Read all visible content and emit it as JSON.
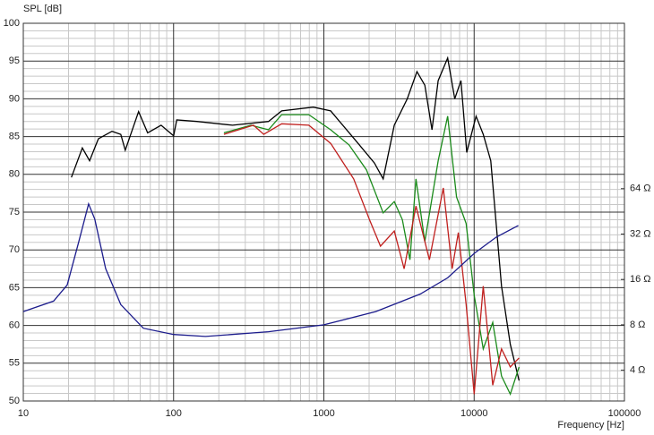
{
  "chart_data": {
    "type": "line",
    "ylabel": "SPL [dB]",
    "xlabel": "Frequency [Hz]",
    "xscale": "log",
    "y2scale": "log",
    "xlim": [
      10,
      100000
    ],
    "xticks": [
      10,
      100,
      1000,
      10000,
      100000
    ],
    "ylim": [
      50,
      100
    ],
    "yticks": [
      50,
      55,
      60,
      65,
      70,
      75,
      80,
      85,
      90,
      95,
      100
    ],
    "y2lim": [
      2.5,
      800
    ],
    "y2ticks": [
      {
        "value": 4,
        "label": "4 Ω"
      },
      {
        "value": 8,
        "label": "8 Ω"
      },
      {
        "value": 16,
        "label": "16 Ω"
      },
      {
        "value": 32,
        "label": "32 Ω"
      },
      {
        "value": 64,
        "label": "64 Ω"
      }
    ],
    "grid": true,
    "series": [
      {
        "color": "#000000",
        "x": [
          20.9,
          24.7,
          27.6,
          31.6,
          38.9,
          44.5,
          47.7,
          58.5,
          67.2,
          82.6,
          100,
          105,
          143,
          247,
          428,
          524,
          850,
          1110,
          1690,
          2170,
          2480,
          2940,
          3590,
          4160,
          4700,
          5240,
          5760,
          6670,
          7430,
          8170,
          8930,
          10300,
          11500,
          12900,
          15200,
          17400,
          19900
        ],
        "values": [
          79.6,
          83.5,
          81.8,
          84.7,
          85.7,
          85.3,
          83.2,
          88.3,
          85.5,
          86.5,
          85.1,
          87.2,
          87.0,
          86.5,
          87.0,
          88.4,
          88.9,
          88.4,
          84.1,
          81.5,
          79.4,
          86.5,
          90.0,
          93.6,
          91.8,
          85.9,
          92.4,
          95.4,
          90.0,
          92.4,
          82.9,
          87.7,
          85.3,
          81.8,
          65.2,
          57.5,
          52.7
        ]
      },
      {
        "color": "#1a8a1a",
        "x": [
          216,
          327,
          428,
          524,
          794,
          1110,
          1470,
          1920,
          2480,
          2940,
          3330,
          3740,
          4100,
          4700,
          5760,
          6670,
          7640,
          8840,
          10000,
          11500,
          13300,
          15200,
          17400,
          19900
        ],
        "values": [
          85.5,
          86.5,
          85.9,
          87.9,
          87.9,
          85.9,
          83.9,
          80.6,
          74.9,
          76.4,
          74.0,
          68.7,
          79.4,
          71.1,
          81.8,
          87.7,
          77.0,
          73.5,
          64.0,
          56.9,
          60.4,
          53.3,
          50.9,
          54.5
        ]
      },
      {
        "color": "#c0201e",
        "x": [
          216,
          340,
          398,
          524,
          794,
          1110,
          1580,
          2010,
          2380,
          2940,
          3420,
          4100,
          5040,
          6230,
          7140,
          7850,
          8840,
          10000,
          11500,
          13300,
          15200,
          17400,
          19900
        ],
        "values": [
          85.3,
          86.5,
          85.3,
          86.7,
          86.5,
          84.1,
          79.4,
          74.0,
          70.5,
          72.5,
          67.5,
          75.8,
          68.7,
          78.2,
          67.5,
          72.3,
          62.8,
          50.9,
          65.2,
          52.1,
          56.9,
          54.5,
          55.7
        ]
      },
      {
        "color": "#1c1c8c",
        "axis": "y2",
        "x": [
          10,
          15.9,
          19.6,
          23.4,
          27.2,
          29.9,
          35.3,
          44.5,
          62.9,
          100,
          163,
          428,
          1000,
          2215,
          4380,
          6670,
          10000,
          14000,
          19700
        ],
        "values": [
          9.8,
          11.5,
          14.7,
          28.4,
          50.7,
          40.2,
          18.9,
          10.9,
          7.6,
          6.9,
          6.7,
          7.2,
          8.0,
          9.8,
          12.8,
          16.4,
          23.8,
          30.5,
          36.5
        ]
      }
    ]
  }
}
